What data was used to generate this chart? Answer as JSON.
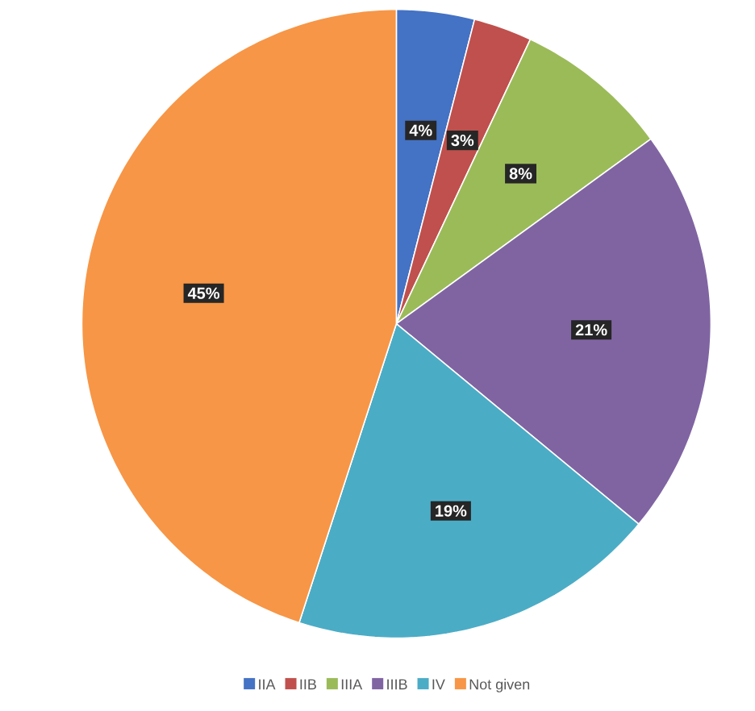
{
  "chart_data": {
    "type": "pie",
    "categories": [
      "IIA",
      "IIB",
      "IIIA",
      "IIIB",
      "IV",
      "Not given"
    ],
    "values": [
      4,
      3,
      8,
      21,
      19,
      45
    ],
    "value_labels": [
      "4%",
      "3%",
      "8%",
      "21%",
      "19%",
      "45%"
    ],
    "colors": [
      "#4472c4",
      "#c0504d",
      "#9bbb59",
      "#8064a2",
      "#4bacc6",
      "#f79646"
    ],
    "legend": "bottom"
  }
}
